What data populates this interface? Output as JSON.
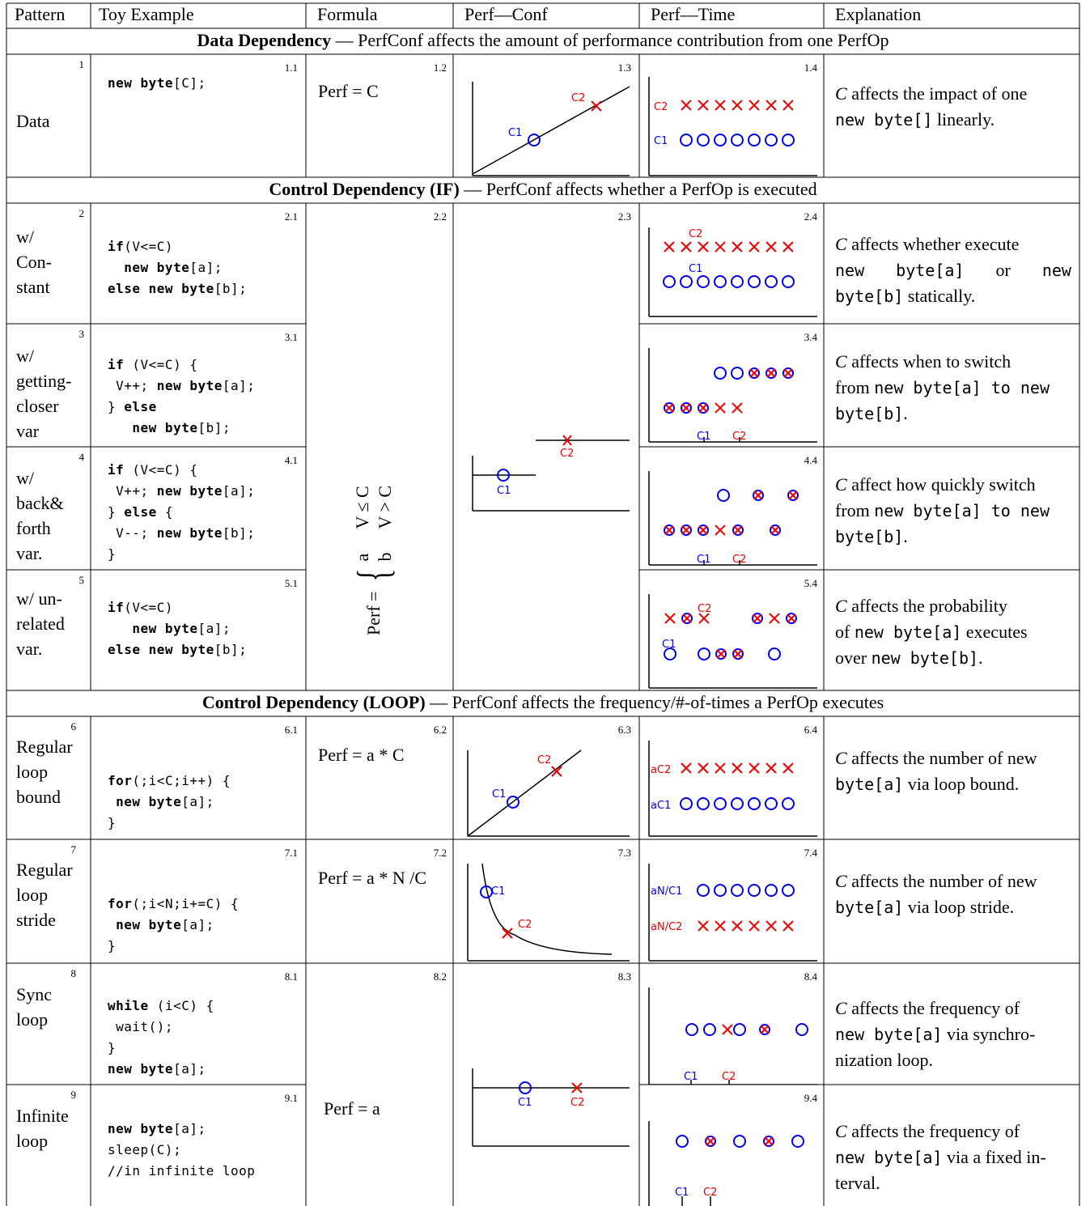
{
  "headers": [
    "Pattern",
    "Toy Example",
    "Formula",
    "Perf—Conf",
    "Perf—Time",
    "Explanation"
  ],
  "sections": {
    "data": {
      "title": "Data Dependency",
      "desc": " — PerfConf affects the amount of performance contribution from one PerfOp"
    },
    "if": {
      "title": "Control Dependency (IF)",
      "desc": " — PerfConf affects whether a PerfOp is executed"
    },
    "loop": {
      "title": "Control Dependency (LOOP)",
      "desc": " — PerfConf affects the frequency/#-of-times a PerfOp executes"
    }
  },
  "rows": [
    {
      "num": "1",
      "pattern": [
        "Data"
      ],
      "c": "1.1",
      "f": "1.2",
      "pc": "1.3",
      "pt": "1.4",
      "formula": "Perf = C"
    },
    {
      "num": "2",
      "pattern": [
        "w/",
        "Con-",
        "stant"
      ],
      "c": "2.1",
      "f": "2.2",
      "pc": "2.3",
      "pt": "2.4"
    },
    {
      "num": "3",
      "pattern": [
        "w/",
        "getting-",
        "closer",
        "var"
      ],
      "c": "3.1",
      "pt": "3.4"
    },
    {
      "num": "4",
      "pattern": [
        "w/",
        "back&",
        "forth",
        "var."
      ],
      "c": "4.1",
      "pt": "4.4"
    },
    {
      "num": "5",
      "pattern": [
        "w/ un-",
        "related",
        "var."
      ],
      "c": "5.1",
      "pt": "5.4"
    },
    {
      "num": "6",
      "pattern": [
        "Regular",
        "loop",
        "bound"
      ],
      "c": "6.1",
      "f": "6.2",
      "pc": "6.3",
      "pt": "6.4",
      "formula": "Perf = a * C"
    },
    {
      "num": "7",
      "pattern": [
        "Regular",
        "loop",
        "stride"
      ],
      "c": "7.1",
      "f": "7.2",
      "pc": "7.3",
      "pt": "7.4",
      "formula": "Perf = a * N /C"
    },
    {
      "num": "8",
      "pattern": [
        "Sync",
        "loop"
      ],
      "c": "8.1",
      "f": "8.2",
      "pc": "8.3",
      "pt": "8.4"
    },
    {
      "num": "9",
      "pattern": [
        "Infinite",
        "loop"
      ],
      "c": "9.1",
      "pt": "9.4",
      "formula": "Perf = a"
    }
  ],
  "if_formula": {
    "lhs": "Perf =",
    "a": "a",
    "b": "b",
    "cond_a": "V ≤ C",
    "cond_b": "V > C"
  },
  "labels": {
    "c1": "C1",
    "c2": "C2",
    "ac1": "aC1",
    "ac2": "aC2",
    "anc1": "aN/C1",
    "anc2": "aN/C2"
  },
  "explanations": {
    "e1": [
      "C",
      " affects the impact of one",
      "new byte[]",
      " linearly."
    ],
    "e2": [
      "C",
      " affects whether execute",
      "new",
      "byte[a]",
      "or",
      "new",
      "byte[b]",
      " statically."
    ],
    "e3": [
      "C",
      " affects when to switch",
      "from ",
      "new byte[a]",
      " to new",
      "byte[b]",
      "."
    ],
    "e4": [
      "C",
      " affect how quickly switch",
      "from ",
      "new byte[a]",
      " to new",
      "byte[b]",
      "."
    ],
    "e5": [
      "C",
      " affects the probability",
      "of ",
      "new byte[a]",
      " executes",
      "over ",
      "new byte[b]",
      "."
    ],
    "e6": [
      "C",
      " affects the number of new",
      "byte[a]",
      " via loop bound."
    ],
    "e7": [
      "C",
      " affects the number of new",
      "byte[a]",
      " via loop stride."
    ],
    "e8": [
      "C",
      " affects the frequency of",
      "new byte[a]",
      " via synchro-",
      "nization loop."
    ],
    "e9": [
      "C",
      " affects the frequency of",
      "new byte[a]",
      " via a fixed in-",
      "terval."
    ]
  },
  "code": {
    "c1": [
      [
        "new byte",
        "[C];"
      ]
    ],
    "c2": [
      [
        "if",
        "(V<=C)"
      ],
      [
        "  new byte",
        "[a];"
      ],
      [
        "else new byte",
        "[b];"
      ]
    ],
    "c3": [
      [
        "if",
        " (V<=C) {"
      ],
      [
        " V++; ",
        "new byte",
        "[a];"
      ],
      [
        "} ",
        "else"
      ],
      [
        "   new byte",
        "[b];"
      ]
    ],
    "c4": [
      [
        "if",
        " (V<=C) {"
      ],
      [
        " V++; ",
        "new byte",
        "[a];"
      ],
      [
        "} ",
        "else",
        " {"
      ],
      [
        " V--; ",
        "new byte",
        "[b];"
      ],
      [
        "}"
      ]
    ],
    "c5": [
      [
        "if",
        "(V<=C)"
      ],
      [
        "   new byte",
        "[a];"
      ],
      [
        "else new byte",
        "[b];"
      ]
    ],
    "c6": [
      [
        "for",
        "(;i<C;i++) {"
      ],
      [
        " new byte",
        "[a];"
      ],
      [
        "}"
      ]
    ],
    "c7": [
      [
        "for",
        "(;i<N;i+=C) {"
      ],
      [
        " new byte",
        "[a];"
      ],
      [
        "}"
      ]
    ],
    "c8": [
      [
        "while",
        " (i<C) {"
      ],
      [
        " wait();"
      ],
      [
        "}"
      ],
      [
        "new byte",
        "[a];"
      ]
    ],
    "c9": [
      [
        "new byte",
        "[a];"
      ],
      [
        "sleep(C);"
      ],
      [
        "//in infinite loop"
      ]
    ]
  },
  "colors": {
    "blue": "#0000ee",
    "red": "#ee0000"
  }
}
